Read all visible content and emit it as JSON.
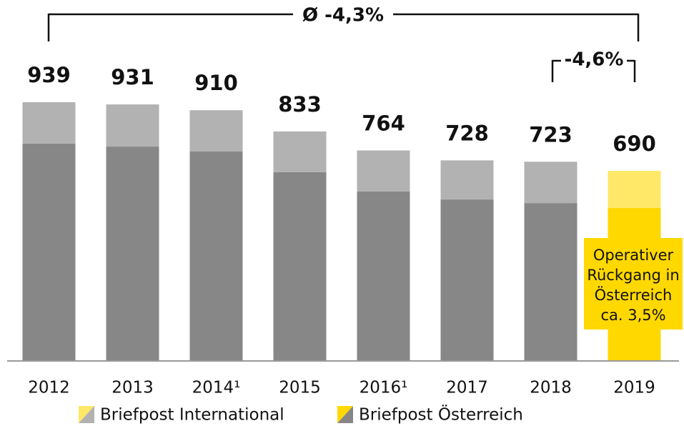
{
  "chart_data": {
    "type": "stacked_bar",
    "categories": [
      "2012",
      "2013",
      "2014¹",
      "2015",
      "2016¹",
      "2017",
      "2018",
      "2019"
    ],
    "totals": [
      939,
      931,
      910,
      833,
      764,
      728,
      723,
      690
    ],
    "series": [
      {
        "name": "Briefpost Österreich",
        "color": "#878787",
        "highlight_color": "#ffd800",
        "values": [
          789,
          778,
          760,
          685,
          615,
          586,
          573,
          555
        ]
      },
      {
        "name": "Briefpost International",
        "color": "#b2b2b2",
        "highlight_color": "#ffe767",
        "values": [
          150,
          153,
          150,
          148,
          149,
          142,
          150,
          135
        ]
      }
    ],
    "highlight_index": 7,
    "annotations": {
      "overall": "Ø -4,3%",
      "last": "-4,6%",
      "box": [
        "Operativer",
        "Rückgang in",
        "Österreich",
        "ca. 3,5%"
      ]
    }
  }
}
